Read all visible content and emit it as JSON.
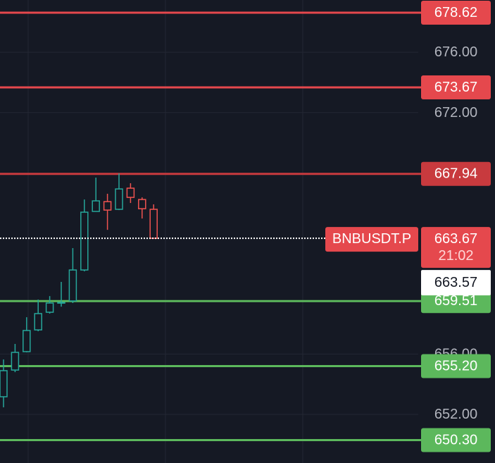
{
  "chart_data": {
    "type": "candlestick",
    "categories": [
      null,
      null,
      null,
      null,
      null,
      null,
      null,
      null,
      null,
      null,
      null,
      null,
      null,
      null
    ],
    "open": [
      653.17,
      654.94,
      656.16,
      657.6,
      658.77,
      659.38,
      659.52,
      661.57,
      665.45,
      666.1,
      665.59,
      666.99,
      666.24,
      665.59
    ],
    "high": [
      655.64,
      656.67,
      658.44,
      659.61,
      659.84,
      660.78,
      663.02,
      666.24,
      667.69,
      666.62,
      667.97,
      667.32,
      666.38,
      665.92
    ],
    "low": [
      652.47,
      654.8,
      656.11,
      657.51,
      658.68,
      659.14,
      659.38,
      661.48,
      665.45,
      664.23,
      665.54,
      666.01,
      664.98,
      663.67
    ],
    "close": [
      654.9,
      656.11,
      657.56,
      658.68,
      659.38,
      659.42,
      661.57,
      665.4,
      666.15,
      665.54,
      666.94,
      666.38,
      665.63,
      663.67
    ],
    "up_color": "#26a69a",
    "down_color": "#ef5350",
    "ylim": [
      648.78,
      679.46
    ],
    "yticks": [
      {
        "value": 676,
        "label": "676.00"
      },
      {
        "value": 672,
        "label": "672.00"
      },
      {
        "value": 656,
        "label": "656.00"
      },
      {
        "value": 652,
        "label": "652.00"
      }
    ],
    "grid": true,
    "levels": [
      {
        "value": 678.62,
        "label": "678.62",
        "color": "#e5484d"
      },
      {
        "value": 673.67,
        "label": "673.67",
        "color": "#e5484d"
      },
      {
        "value": 667.94,
        "label": "667.94",
        "color": "#c83a3e"
      },
      {
        "value": 659.51,
        "label": "659.51",
        "color": "#5cb85c"
      },
      {
        "value": 655.2,
        "label": "655.20",
        "color": "#5cb85c"
      },
      {
        "value": 650.3,
        "label": "650.30",
        "color": "#5cb85c"
      }
    ],
    "last_price": {
      "symbol": "BNBUSDT.P",
      "value": 663.67,
      "countdown": "21:02",
      "color": "#e5484d"
    },
    "price_marker": {
      "value": 663.57
    }
  }
}
